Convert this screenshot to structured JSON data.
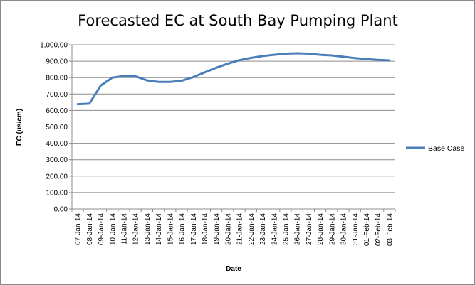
{
  "chart_data": {
    "type": "line",
    "title": "Forecasted EC at South Bay Pumping Plant",
    "xlabel": "Date",
    "ylabel": "EC (us/cm)",
    "ylim": [
      0,
      1000
    ],
    "yticks": [
      "0.00",
      "100.00",
      "200.00",
      "300.00",
      "400.00",
      "500.00",
      "600.00",
      "700.00",
      "800.00",
      "900.00",
      "1,000.00"
    ],
    "categories": [
      "07-Jan-14",
      "08-Jan-14",
      "09-Jan-14",
      "10-Jan-14",
      "11-Jan-14",
      "12-Jan-14",
      "13-Jan-14",
      "14-Jan-14",
      "15-Jan-14",
      "16-Jan-14",
      "17-Jan-14",
      "18-Jan-14",
      "19-Jan-14",
      "20-Jan-14",
      "21-Jan-14",
      "22-Jan-14",
      "23-Jan-14",
      "24-Jan-14",
      "25-Jan-14",
      "26-Jan-14",
      "27-Jan-14",
      "28-Jan-14",
      "29-Jan-14",
      "30-Jan-14",
      "31-Jan-14",
      "01-Feb-14",
      "02-Feb-14",
      "03-Feb-14"
    ],
    "series": [
      {
        "name": "Base Case",
        "color": "#4a7ebb",
        "values": [
          638,
          641,
          752,
          800,
          810,
          808,
          783,
          774,
          774,
          781,
          803,
          832,
          860,
          885,
          906,
          920,
          931,
          939,
          946,
          948,
          946,
          939,
          935,
          927,
          919,
          913,
          908,
          905
        ]
      }
    ],
    "grid": "horizontal",
    "legend": "right"
  }
}
